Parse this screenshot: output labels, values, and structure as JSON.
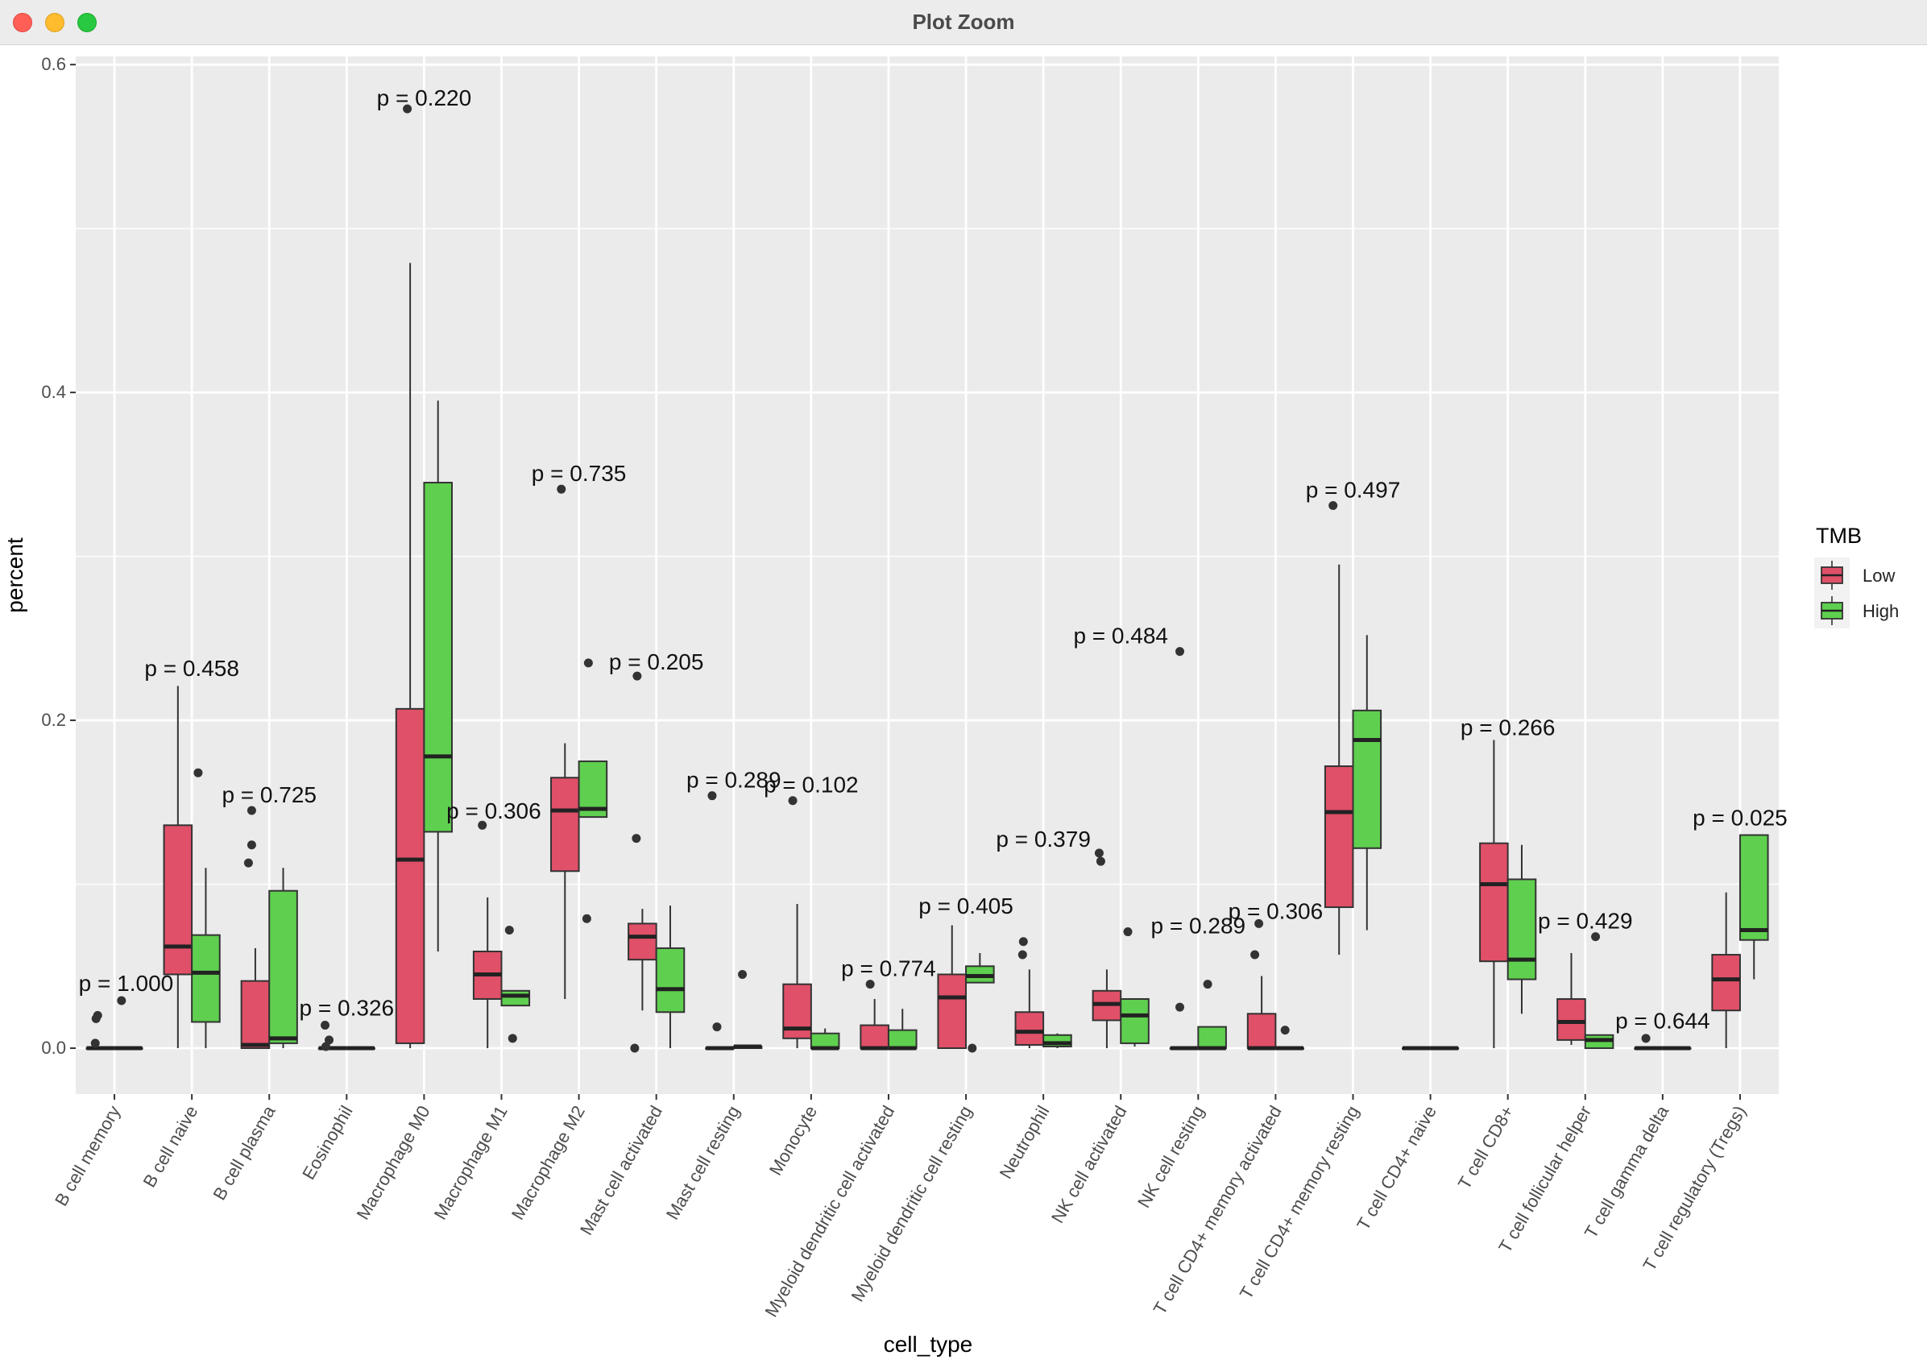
{
  "window": {
    "title": "Plot Zoom"
  },
  "colors": {
    "low": "#e05068",
    "high": "#5fcf4f",
    "panel": "#ebebeb",
    "grid": "#ffffff"
  },
  "chart_data": {
    "type": "boxplot",
    "xlabel": "cell_type",
    "ylabel": "percent",
    "ylim": [
      -0.028,
      0.605
    ],
    "yticks": [
      0.0,
      0.2,
      0.4,
      0.6
    ],
    "ytick_labels": [
      "0.0",
      "0.2",
      "0.4",
      "0.6"
    ],
    "legend": {
      "title": "TMB",
      "position": "right",
      "items": [
        {
          "label": "Low",
          "key": "low"
        },
        {
          "label": "High",
          "key": "high"
        }
      ]
    },
    "categories": [
      {
        "name": "B cell memory",
        "p": "p = 1.000",
        "p_x": 0.15,
        "p_y": 0.033,
        "low": {
          "lw": 0,
          "q1": 0,
          "med": 0,
          "q3": 0,
          "uw": 0,
          "out": [
            0.02,
            0.018,
            0.003
          ]
        },
        "high": {
          "lw": 0,
          "q1": 0,
          "med": 0,
          "q3": 0,
          "uw": 0,
          "out": [
            0.029
          ]
        }
      },
      {
        "name": "B cell naive",
        "p": "p = 0.458",
        "p_x": 0,
        "p_y": 0.225,
        "low": {
          "lw": 0,
          "q1": 0.045,
          "med": 0.062,
          "q3": 0.136,
          "uw": 0.221,
          "out": []
        },
        "high": {
          "lw": 0,
          "q1": 0.016,
          "med": 0.046,
          "q3": 0.069,
          "uw": 0.11,
          "out": [
            0.168
          ]
        }
      },
      {
        "name": "B cell plasma",
        "p": "p = 0.725",
        "p_x": 0,
        "p_y": 0.148,
        "low": {
          "lw": 0,
          "q1": 0,
          "med": 0.002,
          "q3": 0.041,
          "uw": 0.061,
          "out": [
            0.145,
            0.124,
            0.113
          ]
        },
        "high": {
          "lw": 0,
          "q1": 0.003,
          "med": 0.006,
          "q3": 0.096,
          "uw": 0.11,
          "out": []
        }
      },
      {
        "name": "Eosinophil",
        "p": "p = 0.326",
        "p_x": 0,
        "p_y": 0.018,
        "low": {
          "lw": 0,
          "q1": 0,
          "med": 0,
          "q3": 0,
          "uw": 0,
          "out": [
            0.014,
            0.005,
            0.001
          ]
        },
        "high": {
          "lw": 0,
          "q1": 0,
          "med": 0,
          "q3": 0,
          "uw": 0,
          "out": []
        }
      },
      {
        "name": "Macrophage M0",
        "p": "p = 0.220",
        "p_x": 0,
        "p_y": 0.573,
        "low": {
          "lw": 0,
          "q1": 0.003,
          "med": 0.115,
          "q3": 0.207,
          "uw": 0.479,
          "out": [
            0.573
          ]
        },
        "high": {
          "lw": 0.059,
          "q1": 0.132,
          "med": 0.178,
          "q3": 0.345,
          "uw": 0.395,
          "out": []
        }
      },
      {
        "name": "Macrophage M1",
        "p": "p = 0.306",
        "p_x": -0.1,
        "p_y": 0.138,
        "low": {
          "lw": 0,
          "q1": 0.03,
          "med": 0.045,
          "q3": 0.059,
          "uw": 0.092,
          "out": [
            0.136
          ]
        },
        "high": {
          "lw": 0.026,
          "q1": 0.026,
          "med": 0.032,
          "q3": 0.035,
          "uw": 0.035,
          "out": [
            0.072,
            0.006
          ]
        }
      },
      {
        "name": "Macrophage M2",
        "p": "p = 0.735",
        "p_x": 0,
        "p_y": 0.344,
        "low": {
          "lw": 0.03,
          "q1": 0.108,
          "med": 0.145,
          "q3": 0.165,
          "uw": 0.186,
          "out": [
            0.341
          ]
        },
        "high": {
          "lw": 0.141,
          "q1": 0.141,
          "med": 0.146,
          "q3": 0.175,
          "uw": 0.175,
          "out": [
            0.235,
            0.079
          ]
        }
      },
      {
        "name": "Mast cell activated",
        "p": "p = 0.205",
        "p_x": 0,
        "p_y": 0.229,
        "low": {
          "lw": 0.023,
          "q1": 0.054,
          "med": 0.068,
          "q3": 0.076,
          "uw": 0.085,
          "out": [
            0.128,
            0.227,
            0.0
          ]
        },
        "high": {
          "lw": 0,
          "q1": 0.022,
          "med": 0.036,
          "q3": 0.061,
          "uw": 0.087,
          "out": []
        }
      },
      {
        "name": "Mast cell resting",
        "p": "p = 0.289",
        "p_x": 0,
        "p_y": 0.157,
        "low": {
          "lw": 0,
          "q1": 0,
          "med": 0,
          "q3": 0,
          "uw": 0,
          "out": [
            0.154,
            0.013
          ]
        },
        "high": {
          "lw": 0,
          "q1": 0,
          "med": 0.001,
          "q3": 0.001,
          "uw": 0.001,
          "out": [
            0.045
          ]
        }
      },
      {
        "name": "Monocyte",
        "p": "p = 0.102",
        "p_x": 0,
        "p_y": 0.154,
        "low": {
          "lw": 0,
          "q1": 0.006,
          "med": 0.012,
          "q3": 0.039,
          "uw": 0.088,
          "out": [
            0.151
          ]
        },
        "high": {
          "lw": 0,
          "q1": 0,
          "med": 0,
          "q3": 0.009,
          "uw": 0.012,
          "out": []
        }
      },
      {
        "name": "Myeloid dendritic cell activated",
        "p": "p = 0.774",
        "p_x": 0,
        "p_y": 0.042,
        "low": {
          "lw": 0,
          "q1": 0,
          "med": 0,
          "q3": 0.014,
          "uw": 0.03,
          "out": [
            0.039
          ]
        },
        "high": {
          "lw": 0,
          "q1": 0,
          "med": 0,
          "q3": 0.011,
          "uw": 0.024,
          "out": []
        }
      },
      {
        "name": "Myeloid dendritic cell resting",
        "p": "p = 0.405",
        "p_x": 0,
        "p_y": 0.08,
        "low": {
          "lw": 0,
          "q1": 0,
          "med": 0.031,
          "q3": 0.045,
          "uw": 0.075,
          "out": []
        },
        "high": {
          "lw": 0.04,
          "q1": 0.04,
          "med": 0.044,
          "q3": 0.05,
          "uw": 0.058,
          "out": [
            0.0
          ]
        }
      },
      {
        "name": "Neutrophil",
        "p": "p = 0.379",
        "p_x": 0,
        "p_y": 0.121,
        "low": {
          "lw": 0,
          "q1": 0.002,
          "med": 0.01,
          "q3": 0.022,
          "uw": 0.048,
          "out": [
            0.065,
            0.057
          ]
        },
        "high": {
          "lw": 0,
          "q1": 0.001,
          "med": 0.003,
          "q3": 0.008,
          "uw": 0.009,
          "out": []
        }
      },
      {
        "name": "NK cell activated",
        "p": "p = 0.484",
        "p_x": 0,
        "p_y": 0.245,
        "low": {
          "lw": 0,
          "q1": 0.017,
          "med": 0.027,
          "q3": 0.035,
          "uw": 0.048,
          "out": [
            0.119,
            0.114
          ]
        },
        "high": {
          "lw": 0.001,
          "q1": 0.003,
          "med": 0.02,
          "q3": 0.03,
          "uw": 0.03,
          "out": [
            0.071
          ]
        }
      },
      {
        "name": "NK cell resting",
        "p": "p = 0.289",
        "p_x": 0,
        "p_y": 0.068,
        "low": {
          "lw": 0,
          "q1": 0,
          "med": 0,
          "q3": 0,
          "uw": 0,
          "out": [
            0.242,
            0.025
          ]
        },
        "high": {
          "lw": 0,
          "q1": 0,
          "med": 0,
          "q3": 0.013,
          "uw": 0.013,
          "out": [
            0.039
          ]
        }
      },
      {
        "name": "T cell CD4+ memory activated",
        "p": "p = 0.306",
        "p_x": 0,
        "p_y": 0.077,
        "low": {
          "lw": 0,
          "q1": 0,
          "med": 0,
          "q3": 0.021,
          "uw": 0.044,
          "out": [
            0.076,
            0.057
          ]
        },
        "high": {
          "lw": 0,
          "q1": 0,
          "med": 0,
          "q3": 0,
          "uw": 0,
          "out": [
            0.011
          ]
        }
      },
      {
        "name": "T cell CD4+ memory resting",
        "p": "p = 0.497",
        "p_x": 0,
        "p_y": 0.334,
        "low": {
          "lw": 0.057,
          "q1": 0.086,
          "med": 0.144,
          "q3": 0.172,
          "uw": 0.295,
          "out": [
            0.331
          ]
        },
        "high": {
          "lw": 0.072,
          "q1": 0.122,
          "med": 0.188,
          "q3": 0.206,
          "uw": 0.252,
          "out": []
        }
      },
      {
        "name": "T cell CD4+ naive",
        "p": "",
        "p_x": 0,
        "p_y": 0,
        "low": {
          "lw": 0,
          "q1": 0,
          "med": 0,
          "q3": 0,
          "uw": 0,
          "out": []
        },
        "high": {
          "lw": 0,
          "q1": 0,
          "med": 0,
          "q3": 0,
          "uw": 0,
          "out": []
        }
      },
      {
        "name": "T cell CD8+",
        "p": "p = 0.266",
        "p_x": 0,
        "p_y": 0.189,
        "low": {
          "lw": 0,
          "q1": 0.053,
          "med": 0.1,
          "q3": 0.125,
          "uw": 0.188,
          "out": []
        },
        "high": {
          "lw": 0.021,
          "q1": 0.042,
          "med": 0.054,
          "q3": 0.103,
          "uw": 0.124,
          "out": []
        }
      },
      {
        "name": "T cell follicular helper",
        "p": "p = 0.429",
        "p_x": 0,
        "p_y": 0.071,
        "low": {
          "lw": 0.002,
          "q1": 0.005,
          "med": 0.016,
          "q3": 0.03,
          "uw": 0.058,
          "out": []
        },
        "high": {
          "lw": 0,
          "q1": 0,
          "med": 0.005,
          "q3": 0.008,
          "uw": 0.008,
          "out": [
            0.068
          ]
        }
      },
      {
        "name": "T cell gamma delta",
        "p": "p = 0.644",
        "p_x": 0,
        "p_y": 0.01,
        "low": {
          "lw": 0,
          "q1": 0,
          "med": 0,
          "q3": 0,
          "uw": 0,
          "out": [
            0.006
          ]
        },
        "high": {
          "lw": 0,
          "q1": 0,
          "med": 0,
          "q3": 0,
          "uw": 0,
          "out": []
        }
      },
      {
        "name": "T cell regulatory (Tregs)",
        "p": "p = 0.025",
        "p_x": 0,
        "p_y": 0.134,
        "low": {
          "lw": 0,
          "q1": 0.023,
          "med": 0.042,
          "q3": 0.057,
          "uw": 0.095,
          "out": []
        },
        "high": {
          "lw": 0.042,
          "q1": 0.066,
          "med": 0.072,
          "q3": 0.13,
          "uw": 0.13,
          "out": []
        }
      }
    ]
  }
}
